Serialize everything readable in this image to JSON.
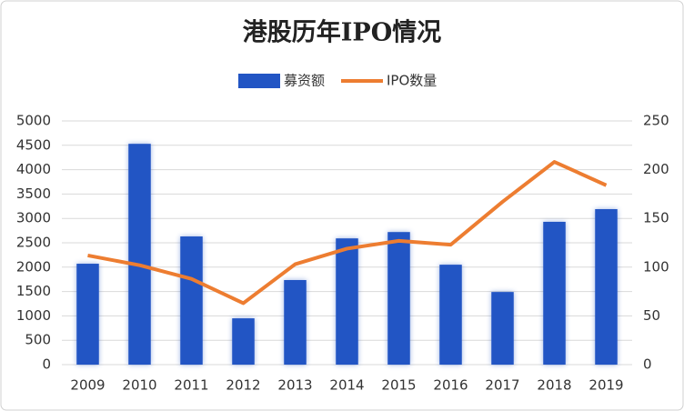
{
  "chart_data": {
    "type": "bar_line",
    "title": "港股历年IPO情况",
    "categories": [
      "2009",
      "2010",
      "2011",
      "2012",
      "2013",
      "2014",
      "2015",
      "2016",
      "2017",
      "2018",
      "2019"
    ],
    "series": [
      {
        "name": "募资额",
        "color": "#2255c4",
        "type": "bar",
        "values": [
          2070,
          4530,
          2630,
          950,
          1735,
          2590,
          2720,
          2050,
          1490,
          2930,
          3190
        ]
      },
      {
        "name": "IPO数量",
        "color": "#ed7d31",
        "type": "line",
        "axis": "y2",
        "values": [
          112,
          102,
          88,
          63,
          103,
          119,
          127,
          123,
          167,
          208,
          184
        ]
      }
    ],
    "ylim": [
      0,
      5000
    ],
    "yticks": [
      0,
      500,
      1000,
      1500,
      2000,
      2500,
      3000,
      3500,
      4000,
      4500,
      5000
    ],
    "y2lim": [
      0,
      250
    ],
    "y2ticks": [
      0,
      50,
      100,
      150,
      200,
      250
    ],
    "grid": true,
    "legend": "top"
  }
}
